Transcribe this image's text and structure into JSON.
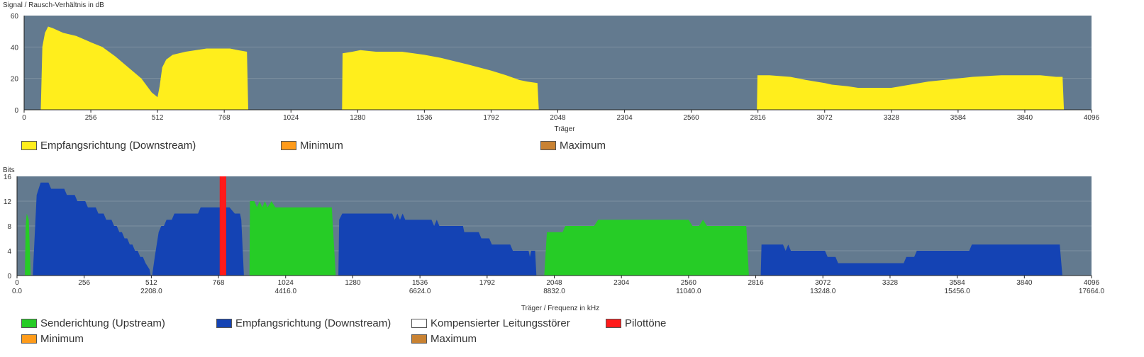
{
  "colors": {
    "plot_bg": "#637a8f",
    "grid": "#7d90a1",
    "yellow": "#ffee1c",
    "green": "#26cc26",
    "blue": "#1443b4",
    "red": "#ff1a1a",
    "white": "#ffffff",
    "orange": "#ff9b1a",
    "brown": "#c98232"
  },
  "chart_data": [
    {
      "type": "area",
      "ylabel": "Signal / Rausch-Verhältnis in dB",
      "xlabel": "Träger",
      "xlim": [
        0,
        4096
      ],
      "ylim": [
        0,
        60
      ],
      "yticks": [
        "0",
        "20",
        "40",
        "60"
      ],
      "xticks": [
        "0",
        "256",
        "512",
        "768",
        "1024",
        "1280",
        "1536",
        "1792",
        "2048",
        "2304",
        "2560",
        "2816",
        "3072",
        "3328",
        "3584",
        "3840",
        "4096"
      ],
      "legend": [
        {
          "label": "Empfangsrichtung (Downstream)",
          "color": "#ffee1c"
        },
        {
          "label": "Minimum",
          "color": "#ff9b1a"
        },
        {
          "label": "Maximum",
          "color": "#c98232"
        }
      ],
      "series": [
        {
          "color": "#ffee1c",
          "segments": [
            [
              [
                64,
                0
              ],
              [
                70,
                40
              ],
              [
                80,
                49
              ],
              [
                92,
                53
              ],
              [
                110,
                52
              ],
              [
                150,
                49
              ],
              [
                200,
                47
              ],
              [
                256,
                43
              ],
              [
                300,
                40
              ],
              [
                350,
                34
              ],
              [
                400,
                27
              ],
              [
                450,
                20
              ],
              [
                490,
                11
              ],
              [
                505,
                9
              ],
              [
                512,
                8
              ],
              [
                520,
                15
              ],
              [
                530,
                27
              ],
              [
                545,
                32
              ],
              [
                570,
                35
              ],
              [
                620,
                37
              ],
              [
                660,
                38
              ],
              [
                700,
                39
              ],
              [
                790,
                39
              ],
              [
                820,
                38
              ],
              [
                855,
                37
              ],
              [
                860,
                0
              ]
            ],
            [
              [
                1220,
                0
              ],
              [
                1222,
                36
              ],
              [
                1260,
                37
              ],
              [
                1290,
                38
              ],
              [
                1350,
                37
              ],
              [
                1450,
                37
              ],
              [
                1536,
                35
              ],
              [
                1600,
                33
              ],
              [
                1700,
                29
              ],
              [
                1792,
                25
              ],
              [
                1850,
                22
              ],
              [
                1900,
                19
              ],
              [
                1930,
                18
              ],
              [
                1970,
                17
              ],
              [
                1975,
                0
              ]
            ],
            [
              [
                2812,
                0
              ],
              [
                2814,
                22
              ],
              [
                2860,
                22
              ],
              [
                2940,
                21
              ],
              [
                3000,
                19
              ],
              [
                3072,
                17
              ],
              [
                3100,
                16
              ],
              [
                3160,
                15
              ],
              [
                3200,
                14
              ],
              [
                3328,
                14
              ],
              [
                3400,
                16
              ],
              [
                3470,
                18
              ],
              [
                3530,
                19
              ],
              [
                3584,
                20
              ],
              [
                3640,
                21
              ],
              [
                3750,
                22
              ],
              [
                3900,
                22
              ],
              [
                3960,
                21
              ],
              [
                3985,
                21
              ],
              [
                3990,
                0
              ]
            ]
          ]
        }
      ]
    },
    {
      "type": "area",
      "ylabel": "Bits",
      "xlabel": "Träger / Frequenz in kHz",
      "xlim": [
        0,
        4096
      ],
      "ylim": [
        0,
        16
      ],
      "yticks": [
        "0",
        "4",
        "8",
        "12",
        "16"
      ],
      "xticks": [
        "0",
        "256",
        "512",
        "768",
        "1024",
        "1280",
        "1536",
        "1792",
        "2048",
        "2304",
        "2560",
        "2816",
        "3072",
        "3328",
        "3584",
        "3840",
        "4096"
      ],
      "xticks2": [
        "0.0",
        "2208.0",
        "4416.0",
        "6624.0",
        "8832.0",
        "11040.0",
        "13248.0",
        "15456.0",
        "17664.0"
      ],
      "legend": [
        {
          "label": "Senderichtung (Upstream)",
          "color": "#26cc26"
        },
        {
          "label": "Empfangsrichtung (Downstream)",
          "color": "#1443b4"
        },
        {
          "label": "Kompensierter Leitungsstörer",
          "color": "#ffffff"
        },
        {
          "label": "Pilottöne",
          "color": "#ff1a1a"
        },
        {
          "label": "Minimum",
          "color": "#ff9b1a"
        },
        {
          "label": "Maximum",
          "color": "#c98232"
        }
      ],
      "series": [
        {
          "name": "Senderichtung (Upstream)",
          "color": "#26cc26",
          "segments": [
            [
              [
                30,
                0
              ],
              [
                33,
                8
              ],
              [
                37,
                10
              ],
              [
                45,
                9
              ],
              [
                52,
                0
              ]
            ],
            [
              [
                886,
                0
              ],
              [
                888,
                12
              ],
              [
                905,
                12
              ],
              [
                915,
                11
              ],
              [
                925,
                12
              ],
              [
                935,
                11
              ],
              [
                945,
                12
              ],
              [
                955,
                11
              ],
              [
                970,
                12
              ],
              [
                985,
                11
              ],
              [
                1200,
                11
              ],
              [
                1215,
                0
              ]
            ],
            [
              [
                2010,
                0
              ],
              [
                2020,
                7
              ],
              [
                2080,
                7
              ],
              [
                2090,
                8
              ],
              [
                2200,
                8
              ],
              [
                2215,
                9
              ],
              [
                2560,
                9
              ],
              [
                2575,
                8
              ],
              [
                2600,
                8
              ],
              [
                2615,
                9
              ],
              [
                2630,
                8
              ],
              [
                2780,
                8
              ],
              [
                2790,
                0
              ]
            ]
          ]
        },
        {
          "name": "Empfangsrichtung (Downstream)",
          "color": "#1443b4",
          "segments": [
            [
              [
                60,
                0
              ],
              [
                75,
                13
              ],
              [
                90,
                15
              ],
              [
                120,
                15
              ],
              [
                130,
                14
              ],
              [
                180,
                14
              ],
              [
                190,
                13
              ],
              [
                220,
                13
              ],
              [
                230,
                12
              ],
              [
                260,
                12
              ],
              [
                270,
                11
              ],
              [
                300,
                11
              ],
              [
                310,
                10
              ],
              [
                330,
                10
              ],
              [
                340,
                9
              ],
              [
                360,
                9
              ],
              [
                370,
                8
              ],
              [
                380,
                8
              ],
              [
                390,
                7
              ],
              [
                400,
                7
              ],
              [
                410,
                6
              ],
              [
                420,
                6
              ],
              [
                430,
                5
              ],
              [
                440,
                5
              ],
              [
                450,
                4
              ],
              [
                460,
                4
              ],
              [
                470,
                3
              ],
              [
                480,
                3
              ],
              [
                490,
                2
              ],
              [
                505,
                1
              ],
              [
                510,
                0
              ]
            ],
            [
              [
                515,
                0
              ],
              [
                525,
                3
              ],
              [
                540,
                7
              ],
              [
                550,
                8
              ],
              [
                560,
                8
              ],
              [
                570,
                9
              ],
              [
                590,
                9
              ],
              [
                600,
                10
              ],
              [
                690,
                10
              ],
              [
                700,
                11
              ],
              [
                795,
                11
              ],
              [
                810,
                11
              ],
              [
                830,
                10
              ],
              [
                850,
                10
              ],
              [
                855,
                9
              ],
              [
                865,
                0
              ]
            ],
            [
              [
                1225,
                0
              ],
              [
                1228,
                9
              ],
              [
                1240,
                10
              ],
              [
                1430,
                10
              ],
              [
                1440,
                9
              ],
              [
                1450,
                10
              ],
              [
                1460,
                9
              ],
              [
                1470,
                10
              ],
              [
                1480,
                9
              ],
              [
                1580,
                9
              ],
              [
                1590,
                8
              ],
              [
                1600,
                9
              ],
              [
                1610,
                8
              ],
              [
                1700,
                8
              ],
              [
                1705,
                7
              ],
              [
                1760,
                7
              ],
              [
                1770,
                6
              ],
              [
                1800,
                6
              ],
              [
                1810,
                5
              ],
              [
                1880,
                5
              ],
              [
                1890,
                4
              ],
              [
                1950,
                4
              ],
              [
                1955,
                3
              ],
              [
                1960,
                4
              ],
              [
                1975,
                4
              ],
              [
                1980,
                0
              ]
            ],
            [
              [
                2835,
                0
              ],
              [
                2838,
                5
              ],
              [
                2920,
                5
              ],
              [
                2930,
                4
              ],
              [
                2940,
                5
              ],
              [
                2950,
                4
              ],
              [
                3080,
                4
              ],
              [
                3090,
                3
              ],
              [
                3120,
                3
              ],
              [
                3130,
                2
              ],
              [
                3380,
                2
              ],
              [
                3390,
                3
              ],
              [
                3420,
                3
              ],
              [
                3430,
                4
              ],
              [
                3630,
                4
              ],
              [
                3640,
                5
              ],
              [
                3975,
                5
              ],
              [
                3985,
                0
              ]
            ]
          ]
        },
        {
          "name": "Pilottöne",
          "color": "#ff1a1a",
          "bars": [
            [
              778,
              16
            ],
            [
              786,
              16
            ],
            [
              792,
              16
            ]
          ]
        }
      ]
    }
  ]
}
